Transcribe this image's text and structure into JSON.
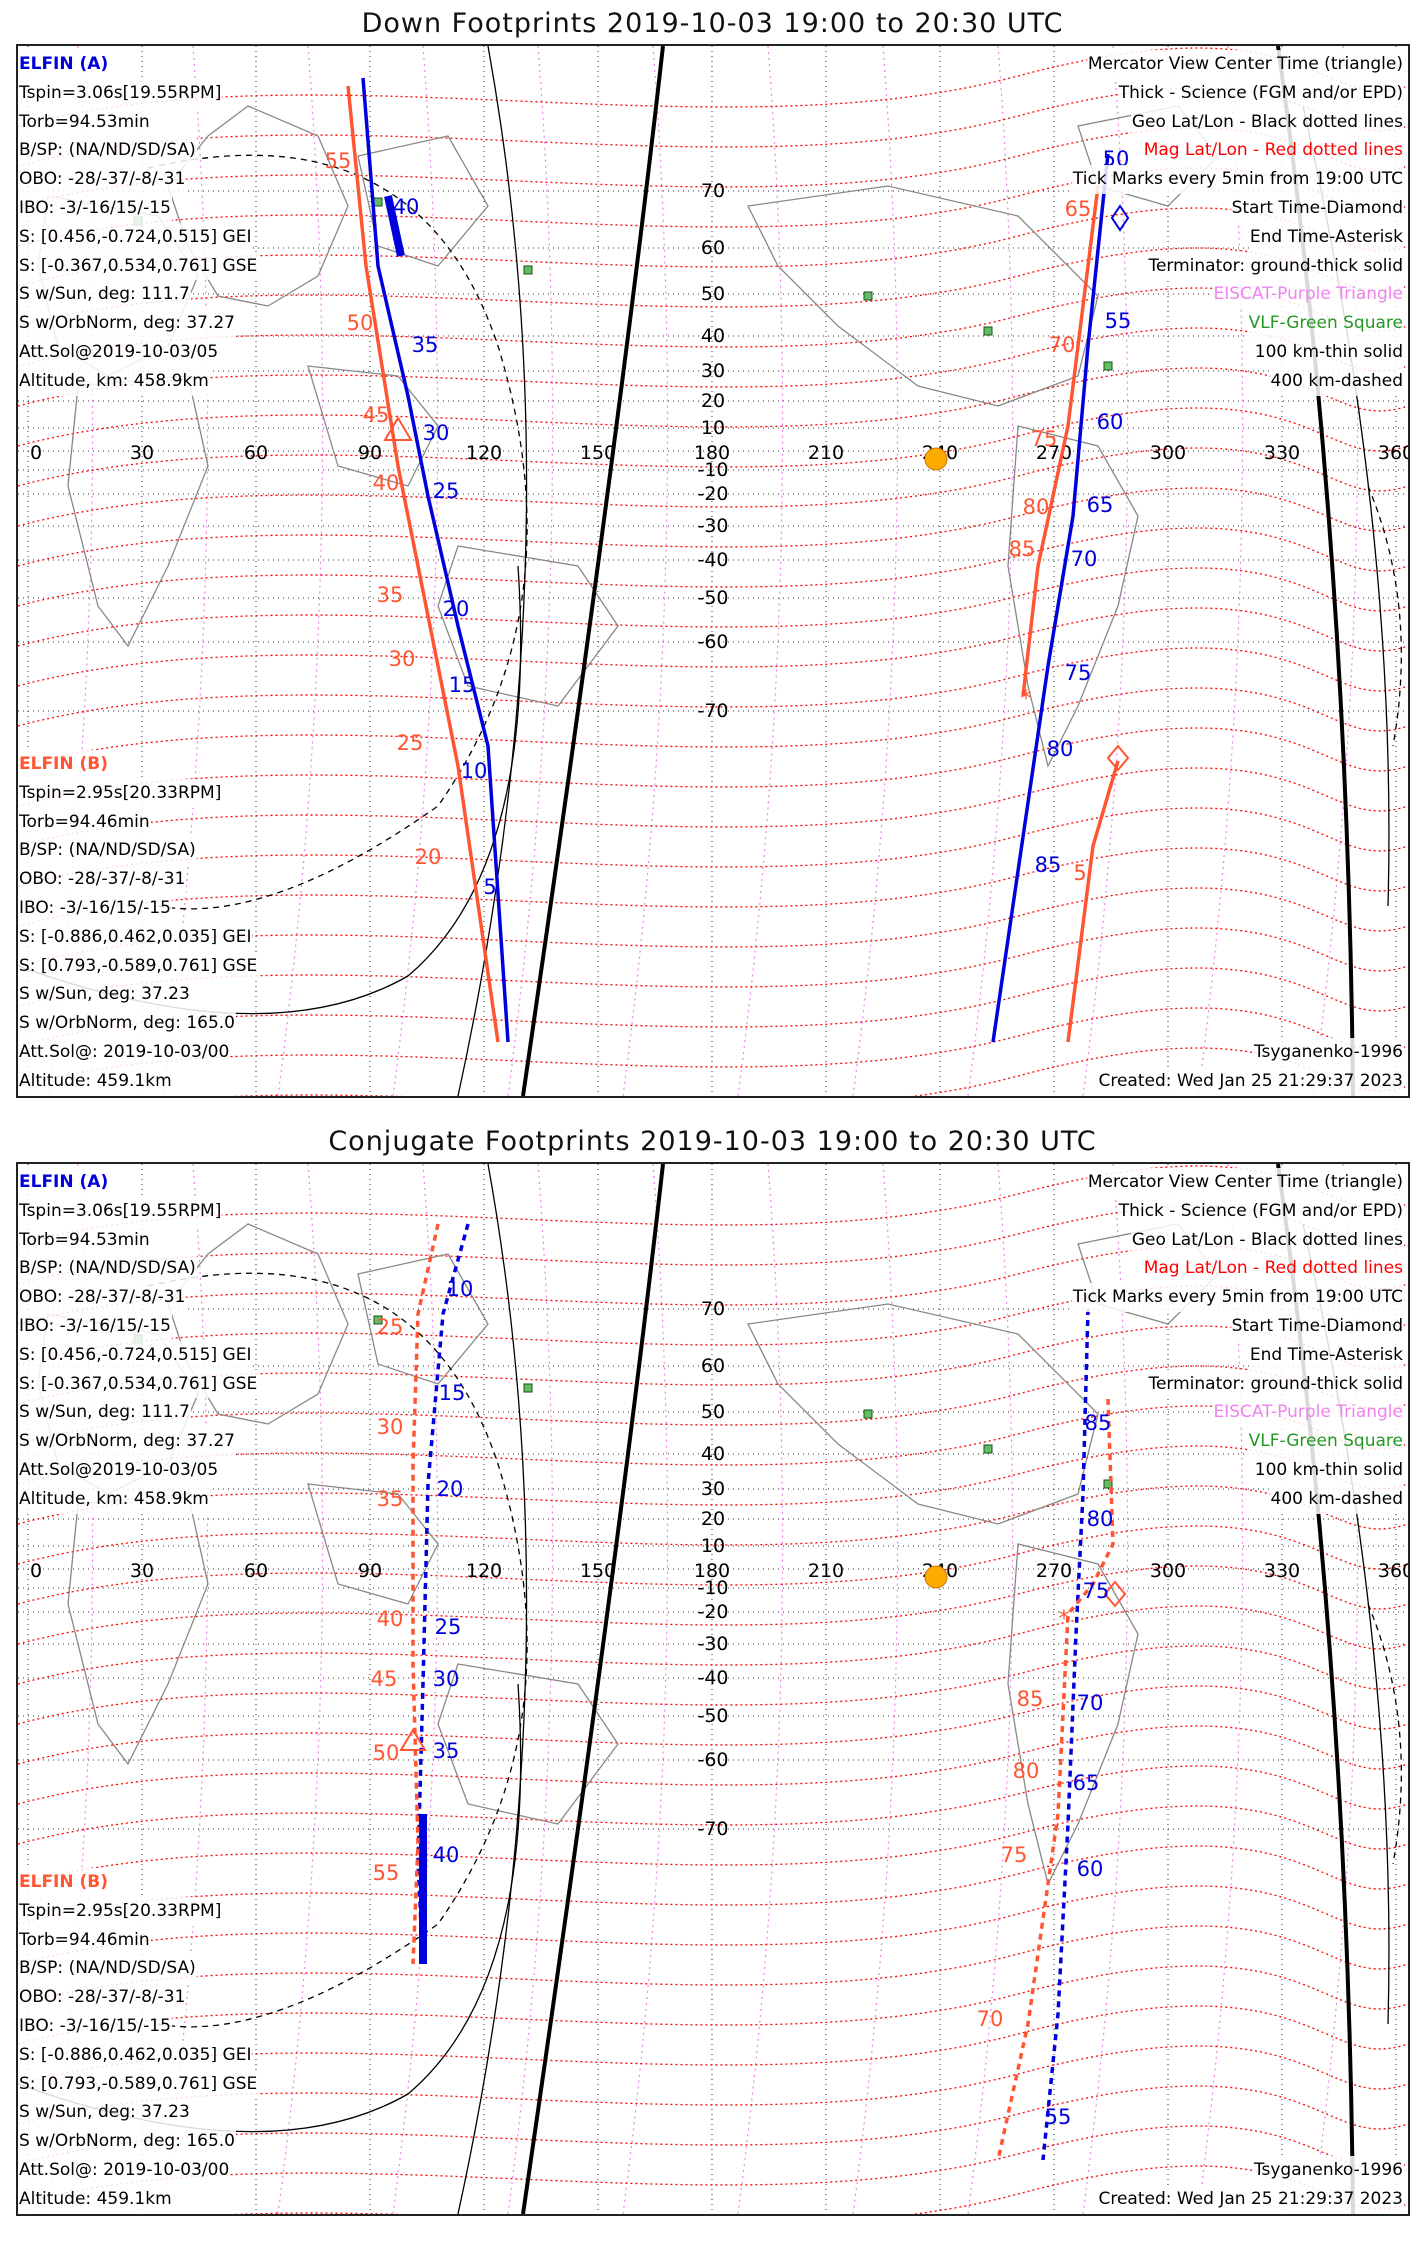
{
  "panels": [
    {
      "title": "Down Footprints 2019-10-03 19:00 to 20:30 UTC",
      "elfin_a": {
        "name": "ELFIN (A)",
        "lines": [
          "Tspin=3.06s[19.55RPM]",
          "Torb=94.53min",
          "B/SP: (NA/ND/SD/SA)",
          "OBO: -28/-37/-8/-31",
          "IBO: -3/-16/15/-15",
          "S: [0.456,-0.724,0.515] GEI",
          "S: [-0.367,0.534,0.761] GSE",
          "S w/Sun, deg: 111.7",
          "S w/OrbNorm, deg: 37.27",
          "Att.Sol@2019-10-03/05",
          "Altitude, km: 458.9km"
        ]
      },
      "elfin_b": {
        "name": "ELFIN (B)",
        "lines": [
          "Tspin=2.95s[20.33RPM]",
          "Torb=94.46min",
          "B/SP: (NA/ND/SD/SA)",
          "OBO: -28/-37/-8/-31",
          "IBO: -3/-16/15/-15",
          "S: [-0.886,0.462,0.035] GEI",
          "S: [0.793,-0.589,0.761] GSE",
          "S w/Sun, deg: 37.23",
          "S w/OrbNorm, deg: 165.0",
          "Att.Sol@: 2019-10-03/00",
          "Altitude: 459.1km"
        ]
      },
      "legend": [
        "Mercator View Center Time (triangle)",
        "Thick - Science (FGM and/or EPD)",
        "Geo Lat/Lon - Black dotted lines",
        "Mag Lat/Lon - Red dotted lines",
        "Tick Marks every 5min from 19:00 UTC",
        "Start Time-Diamond",
        "End Time-Asterisk",
        "Terminator: ground-thick solid",
        "EISCAT-Purple Triangle",
        "VLF-Green Square",
        "100 km-thin solid",
        "400 km-dashed"
      ],
      "model": "Tsyganenko-1996",
      "created": "Created: Wed Jan 25 21:29:37 2023",
      "track_a_labels": [
        "40",
        "35",
        "30",
        "25",
        "20",
        "15",
        "10",
        "5",
        "50",
        "55",
        "60",
        "65",
        "70",
        "75",
        "80",
        "85"
      ],
      "track_b_labels": [
        "55",
        "50",
        "45",
        "40",
        "35",
        "30",
        "25",
        "20",
        "65",
        "70",
        "75",
        "80",
        "85",
        "5"
      ]
    },
    {
      "title": "Conjugate Footprints 2019-10-03 19:00 to 20:30 UTC",
      "elfin_a": {
        "name": "ELFIN (A)",
        "lines": [
          "Tspin=3.06s[19.55RPM]",
          "Torb=94.53min",
          "B/SP: (NA/ND/SD/SA)",
          "OBO: -28/-37/-8/-31",
          "IBO: -3/-16/15/-15",
          "S: [0.456,-0.724,0.515] GEI",
          "S: [-0.367,0.534,0.761] GSE",
          "S w/Sun, deg: 111.7",
          "S w/OrbNorm, deg: 37.27",
          "Att.Sol@2019-10-03/05",
          "Altitude, km: 458.9km"
        ]
      },
      "elfin_b": {
        "name": "ELFIN (B)",
        "lines": [
          "Tspin=2.95s[20.33RPM]",
          "Torb=94.46min",
          "B/SP: (NA/ND/SD/SA)",
          "OBO: -28/-37/-8/-31",
          "IBO: -3/-16/15/-15",
          "S: [-0.886,0.462,0.035] GEI",
          "S: [0.793,-0.589,0.761] GSE",
          "S w/Sun, deg: 37.23",
          "S w/OrbNorm, deg: 165.0",
          "Att.Sol@: 2019-10-03/00",
          "Altitude: 459.1km"
        ]
      },
      "legend": [
        "Mercator View Center Time (triangle)",
        "Thick - Science (FGM and/or EPD)",
        "Geo Lat/Lon - Black dotted lines",
        "Mag Lat/Lon - Red dotted lines",
        "Tick Marks every 5min from 19:00 UTC",
        "Start Time-Diamond",
        "End Time-Asterisk",
        "Terminator: ground-thick solid",
        "EISCAT-Purple Triangle",
        "VLF-Green Square",
        "100 km-thin solid",
        "400 km-dashed"
      ],
      "model": "Tsyganenko-1996",
      "created": "Created: Wed Jan 25 21:29:37 2023",
      "track_a_labels": [
        "10",
        "15",
        "20",
        "25",
        "30",
        "35",
        "40",
        "85",
        "80",
        "75",
        "70",
        "65",
        "60",
        "55"
      ],
      "track_b_labels": [
        "25",
        "30",
        "35",
        "40",
        "45",
        "50",
        "55",
        "85",
        "80",
        "75",
        "70"
      ]
    }
  ],
  "map": {
    "lon_labels": [
      "0",
      "30",
      "60",
      "90",
      "120",
      "150",
      "180",
      "210",
      "240",
      "270",
      "300",
      "330",
      "360"
    ],
    "lat_labels": [
      "70",
      "60",
      "50",
      "40",
      "30",
      "20",
      "10",
      "-10",
      "-20",
      "-30",
      "-40",
      "-50",
      "-60",
      "-70"
    ]
  },
  "colors": {
    "elfin_a": "#0000dd",
    "elfin_b": "#ff5533",
    "mag_grid": "#ff0000",
    "geo_grid": "#000000",
    "eiscat": "#ee82ee",
    "vlf": "#229922",
    "sun": "#ffaa00"
  }
}
